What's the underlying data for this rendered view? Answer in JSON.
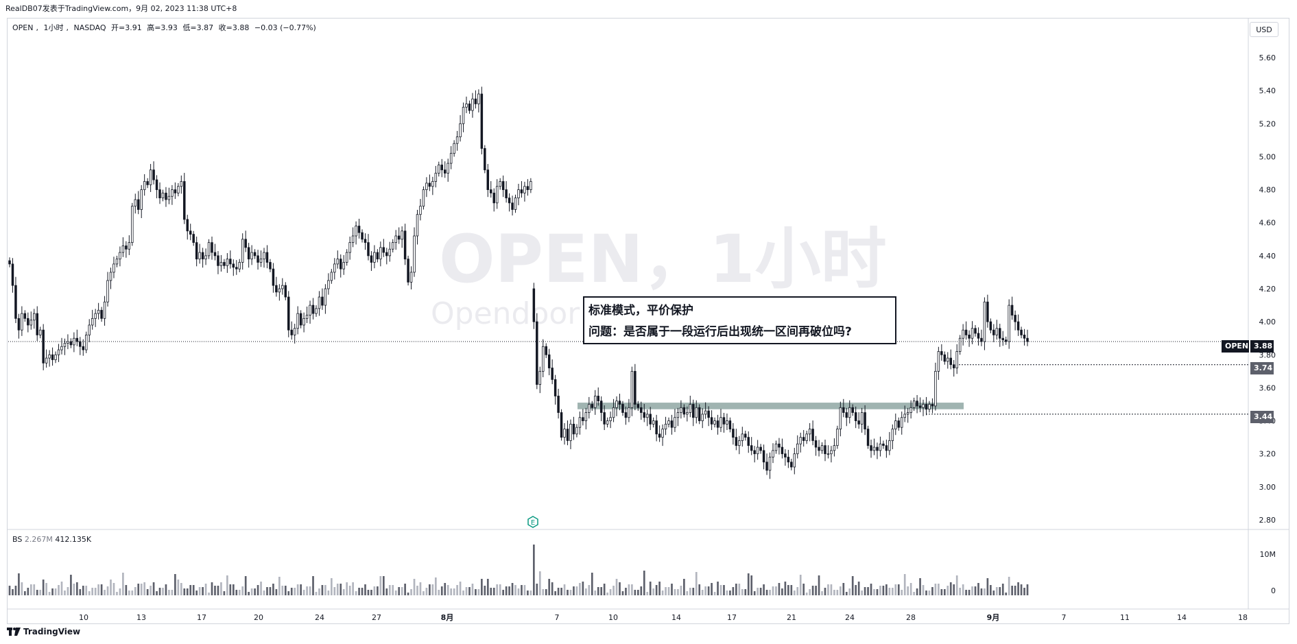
{
  "header": {
    "publish_line": "RealDB07发表于TradingView.com，9月 02, 2023 11:38 UTC+8"
  },
  "legend": {
    "symbol": "OPEN",
    "interval": "1小时",
    "exchange": "NASDAQ",
    "open": "开=3.91",
    "high": "高=3.93",
    "low": "低=3.87",
    "close": "收=3.88",
    "change": "−0.03 (−0.77%)"
  },
  "currency_button": "USD",
  "watermark": {
    "title": "OPEN，1小时",
    "subtitle": "Opendoor Technologies Inc"
  },
  "note": {
    "line1": "标准模式，平价保护",
    "line2": "问题：是否属于一段运行后出现统一区间再破位吗?"
  },
  "price_tags": {
    "current_symbol": "OPEN",
    "current_price": "3.88",
    "level1": "3.74",
    "level2": "3.44"
  },
  "volume_legend": {
    "name": "BS",
    "value1": "2.267M",
    "value2": "412.135K"
  },
  "earnings_marker": "E",
  "branding": "TradingView",
  "colors": {
    "up": "#ffffff",
    "down": "#131722",
    "candle_outline": "#131722",
    "volume_up": "#b2b5be",
    "volume_down": "#5d606b",
    "zone": "#8fa7a3",
    "price_tag_dark": "#131722",
    "price_tag_gray": "#5d606b"
  },
  "chart_data": {
    "type": "candlestick",
    "y_axis_ticks": [
      "5.60",
      "5.40",
      "5.20",
      "5.00",
      "4.80",
      "4.60",
      "4.40",
      "4.20",
      "4.00",
      "3.80",
      "3.60",
      "3.40",
      "3.20",
      "3.00",
      "2.80"
    ],
    "ylim": [
      2.75,
      5.7
    ],
    "volume_axis_ticks": [
      "10M",
      "0"
    ],
    "x_axis_labels": [
      "10",
      "13",
      "17",
      "20",
      "24",
      "27",
      "8月",
      "7",
      "10",
      "14",
      "17",
      "21",
      "24",
      "28",
      "9月",
      "7",
      "11",
      "14",
      "18"
    ],
    "horizontal_levels": [
      3.88,
      3.74,
      3.44
    ],
    "zone": {
      "low": 3.47,
      "high": 3.51,
      "label": ""
    },
    "closes": [
      4.35,
      4.22,
      4.02,
      3.95,
      4.05,
      4.02,
      3.98,
      4.01,
      4.05,
      3.92,
      3.95,
      3.75,
      3.78,
      3.8,
      3.77,
      3.8,
      3.83,
      3.85,
      3.87,
      3.88,
      3.86,
      3.9,
      3.88,
      3.85,
      3.83,
      3.92,
      3.98,
      4.02,
      4.05,
      4.07,
      4.02,
      4.12,
      4.25,
      4.3,
      4.35,
      4.38,
      4.42,
      4.46,
      4.44,
      4.48,
      4.7,
      4.74,
      4.68,
      4.8,
      4.85,
      4.83,
      4.92,
      4.86,
      4.8,
      4.75,
      4.78,
      4.74,
      4.76,
      4.8,
      4.78,
      4.82,
      4.85,
      4.62,
      4.55,
      4.53,
      4.48,
      4.38,
      4.42,
      4.38,
      4.4,
      4.48,
      4.42,
      4.4,
      4.34,
      4.36,
      4.34,
      4.38,
      4.35,
      4.33,
      4.32,
      4.36,
      4.5,
      4.45,
      4.38,
      4.42,
      4.4,
      4.36,
      4.38,
      4.42,
      4.36,
      4.32,
      4.22,
      4.18,
      4.2,
      4.22,
      4.15,
      3.95,
      3.92,
      3.96,
      4.05,
      3.98,
      4.02,
      4.04,
      4.1,
      4.05,
      4.08,
      4.15,
      4.1,
      4.2,
      4.25,
      4.3,
      4.35,
      4.38,
      4.32,
      4.36,
      4.42,
      4.48,
      4.52,
      4.58,
      4.54,
      4.5,
      4.48,
      4.4,
      4.36,
      4.42,
      4.38,
      4.45,
      4.42,
      4.4,
      4.44,
      4.48,
      4.52,
      4.5,
      4.55,
      4.38,
      4.24,
      4.3,
      4.52,
      4.65,
      4.7,
      4.8,
      4.84,
      4.82,
      4.85,
      4.9,
      4.95,
      4.92,
      4.9,
      4.96,
      5.02,
      5.08,
      5.12,
      5.2,
      5.3,
      5.32,
      5.28,
      5.35,
      5.32,
      5.38,
      5.05,
      4.92,
      4.8,
      4.78,
      4.72,
      4.82,
      4.85,
      4.8,
      4.75,
      4.72,
      4.68,
      4.75,
      4.8,
      4.78,
      4.82,
      4.8,
      4.85,
      4.0,
      3.62,
      3.7,
      3.85,
      3.8,
      3.72,
      3.65,
      3.55,
      3.45,
      3.3,
      3.35,
      3.28,
      3.38,
      3.32,
      3.36,
      3.42,
      3.4,
      3.45,
      3.5,
      3.48,
      3.55,
      3.52,
      3.45,
      3.38,
      3.4,
      3.42,
      3.48,
      3.52,
      3.5,
      3.45,
      3.42,
      3.48,
      3.7,
      3.5,
      3.48,
      3.45,
      3.42,
      3.44,
      3.38,
      3.4,
      3.32,
      3.3,
      3.35,
      3.38,
      3.4,
      3.36,
      3.42,
      3.45,
      3.48,
      3.44,
      3.45,
      3.5,
      3.42,
      3.48,
      3.4,
      3.44,
      3.46,
      3.42,
      3.38,
      3.4,
      3.36,
      3.42,
      3.38,
      3.4,
      3.35,
      3.3,
      3.25,
      3.28,
      3.32,
      3.3,
      3.25,
      3.22,
      3.2,
      3.24,
      3.22,
      3.15,
      3.1,
      3.18,
      3.22,
      3.26,
      3.24,
      3.2,
      3.18,
      3.15,
      3.12,
      3.2,
      3.26,
      3.3,
      3.28,
      3.32,
      3.35,
      3.28,
      3.24,
      3.22,
      3.25,
      3.2,
      3.2,
      3.22,
      3.25,
      3.35,
      3.48,
      3.45,
      3.42,
      3.48,
      3.45,
      3.4,
      3.38,
      3.45,
      3.35,
      3.25,
      3.22,
      3.24,
      3.22,
      3.26,
      3.25,
      3.22,
      3.28,
      3.35,
      3.4,
      3.36,
      3.42,
      3.44,
      3.45,
      3.48,
      3.52,
      3.49,
      3.48,
      3.5,
      3.47,
      3.5,
      3.49,
      3.7,
      3.82,
      3.8,
      3.76,
      3.78,
      3.74,
      3.72,
      3.82,
      3.9,
      3.95,
      3.92,
      3.9,
      3.96,
      3.93,
      3.9,
      3.88,
      4.12,
      4.0,
      3.95,
      3.92,
      3.96,
      3.9,
      3.89,
      3.88,
      4.1,
      4.04,
      4.0,
      3.95,
      3.92,
      3.9,
      3.88
    ],
    "volume_note": "relative bar heights, max ≈ 10M"
  }
}
